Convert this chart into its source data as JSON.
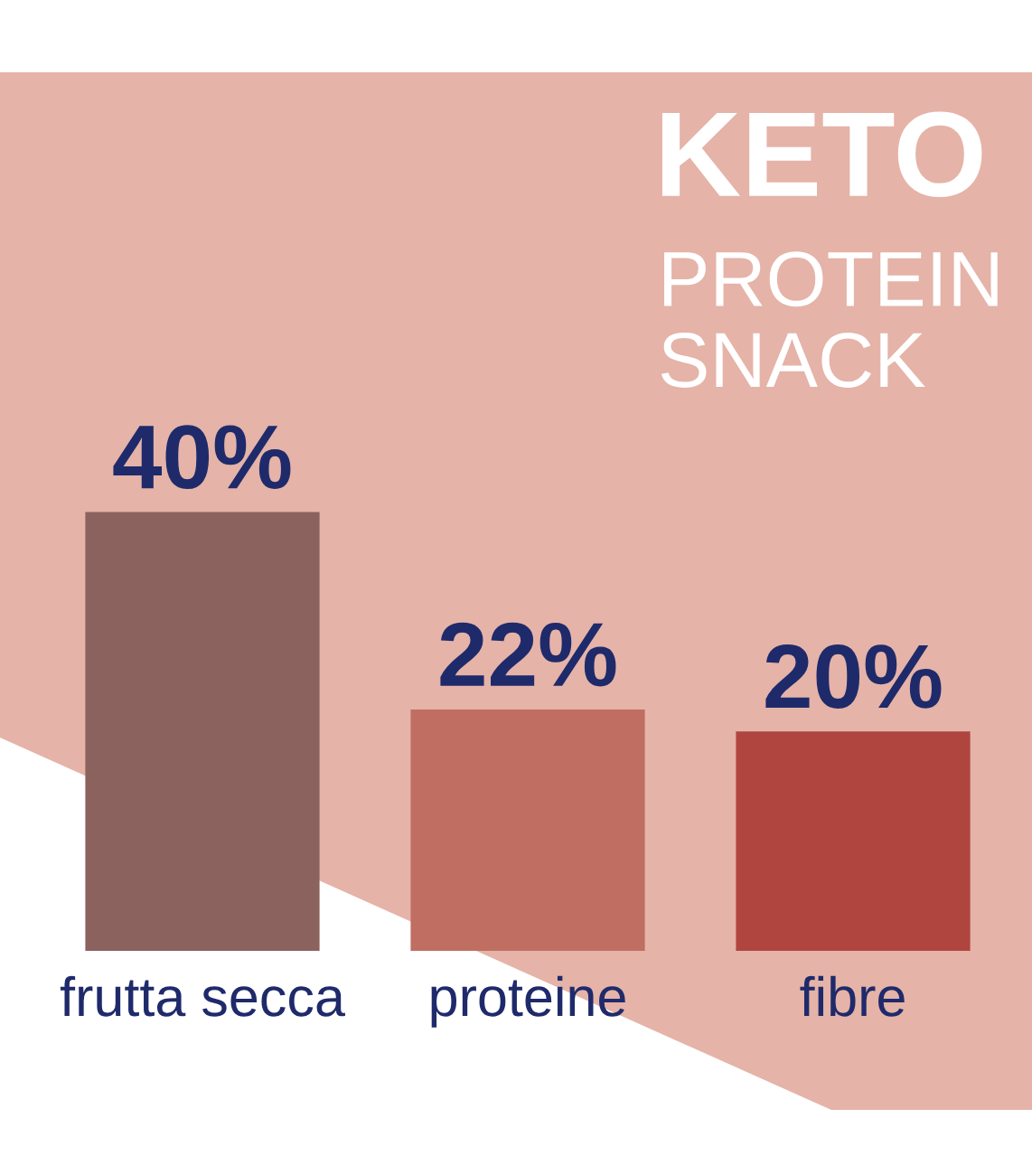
{
  "chart_data": {
    "type": "bar",
    "title": "KETO",
    "subtitle": "PROTEIN\nSNACK",
    "categories": [
      "frutta secca",
      "proteine",
      "fibre"
    ],
    "values": [
      40,
      22,
      20
    ],
    "colors": [
      "#8b625e",
      "#c06e62",
      "#b04540"
    ],
    "value_labels": [
      "40%",
      "22%",
      "20%"
    ],
    "tick_labels": "x"
  }
}
